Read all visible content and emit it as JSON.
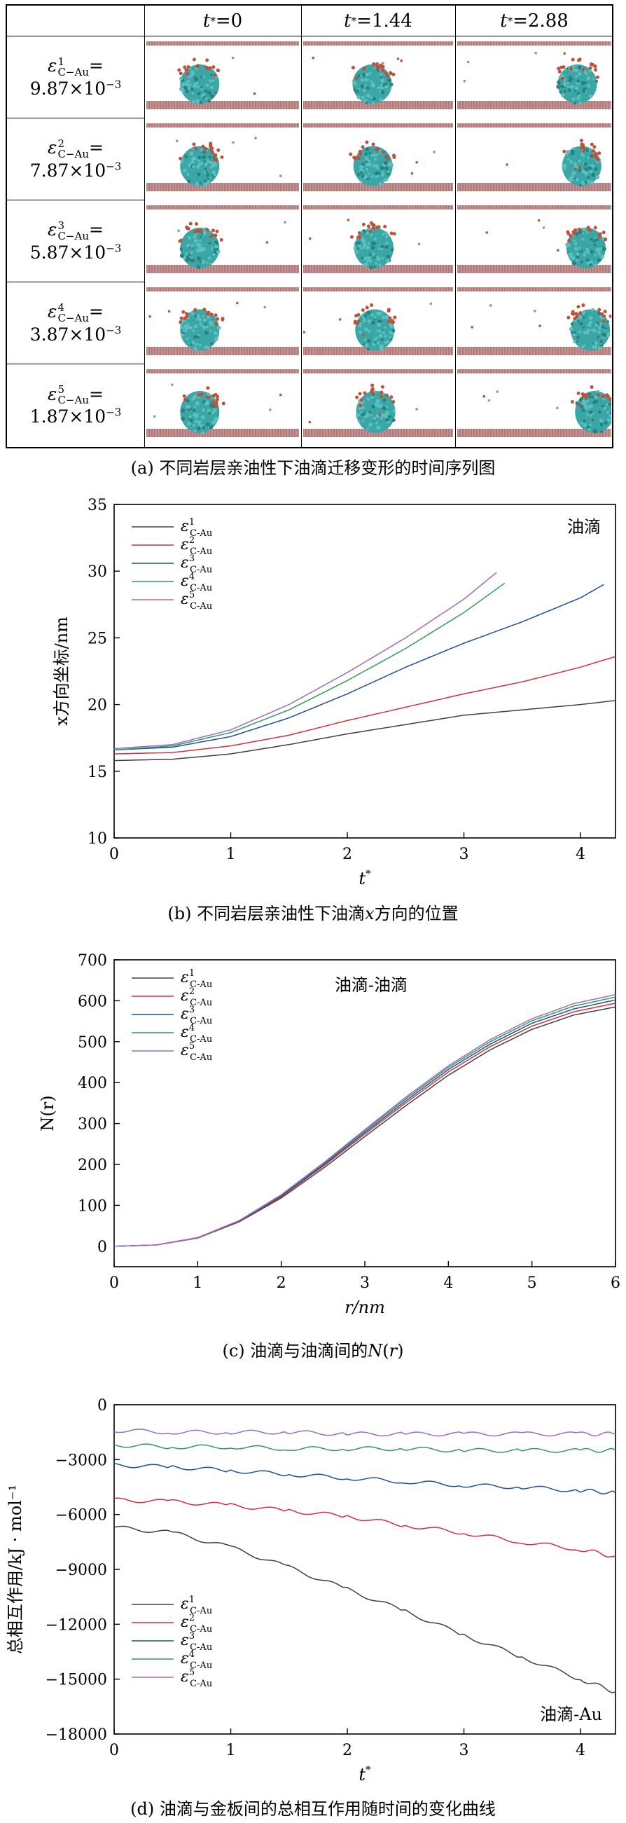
{
  "panel_a": {
    "col_headers": [
      "t*=0",
      "t*=1.44",
      "t*=2.88"
    ],
    "col_header_parts": [
      {
        "t": "t",
        "sup": "*",
        "rest": "=0"
      },
      {
        "t": "t",
        "sup": "*",
        "rest": "=1.44"
      },
      {
        "t": "t",
        "sup": "*",
        "rest": "=2.88"
      }
    ],
    "rows": [
      {
        "eps": "ε",
        "sup": "1",
        "sub": "C−Au",
        "eq": "=",
        "val": "9.87×10",
        "exp": "−3"
      },
      {
        "eps": "ε",
        "sup": "2",
        "sub": "C−Au",
        "eq": "=",
        "val": "7.87×10",
        "exp": "−3"
      },
      {
        "eps": "ε",
        "sup": "3",
        "sub": "C−Au",
        "eq": "=",
        "val": "5.87×10",
        "exp": "−3"
      },
      {
        "eps": "ε",
        "sup": "4",
        "sub": "C−Au",
        "eq": "=",
        "val": "3.87×10",
        "exp": "−3"
      },
      {
        "eps": "ε",
        "sup": "5",
        "sub": "C−Au",
        "eq": "=",
        "val": "1.87×10",
        "exp": "−3"
      }
    ],
    "caption": "(a) 不同岩层亲油性下油滴迁移变形的时间序列图"
  },
  "colors": {
    "s1": "#404040",
    "s2": "#d62f3a",
    "s3": "#1f4e9a",
    "s4": "#2f9a5a",
    "s5": "#a06ac0",
    "droplet": "#3aa6a6",
    "particle": "#c0503a",
    "plate": "#b07070"
  },
  "legend_labels": [
    {
      "eps": "ε",
      "sup": "1",
      "sub": "C-Au"
    },
    {
      "eps": "ε",
      "sup": "2",
      "sub": "C-Au"
    },
    {
      "eps": "ε",
      "sup": "3",
      "sub": "C-Au"
    },
    {
      "eps": "ε",
      "sup": "4",
      "sub": "C-Au"
    },
    {
      "eps": "ε",
      "sup": "5",
      "sub": "C-Au"
    }
  ],
  "chart_data": [
    {
      "id": "b",
      "type": "line",
      "title": "",
      "annotation": "油滴",
      "xlabel": "t",
      "xlabel_sup": "*",
      "ylabel": "x方向坐标/nm",
      "xlim": [
        0,
        4.3
      ],
      "ylim": [
        10,
        35
      ],
      "xticks": [
        0,
        1,
        2,
        3,
        4
      ],
      "yticks": [
        10,
        15,
        20,
        25,
        30,
        35
      ],
      "caption_parts": [
        "(b) 不同岩层亲油性下油滴",
        "x",
        "方向的位置"
      ],
      "series": [
        {
          "name": "ε1",
          "x": [
            0,
            0.5,
            1,
            1.5,
            2,
            2.5,
            3,
            3.5,
            4,
            4.3
          ],
          "y": [
            15.8,
            15.9,
            16.3,
            17,
            17.8,
            18.5,
            19.2,
            19.6,
            20,
            20.3
          ]
        },
        {
          "name": "ε2",
          "x": [
            0,
            0.5,
            1,
            1.5,
            2,
            2.5,
            3,
            3.5,
            4,
            4.3
          ],
          "y": [
            16.3,
            16.4,
            16.9,
            17.7,
            18.8,
            19.8,
            20.8,
            21.7,
            22.8,
            23.6
          ]
        },
        {
          "name": "ε3",
          "x": [
            0,
            0.5,
            1,
            1.5,
            2,
            2.5,
            3,
            3.5,
            4,
            4.2
          ],
          "y": [
            16.6,
            16.8,
            17.6,
            19,
            20.8,
            22.8,
            24.6,
            26.2,
            28,
            29
          ]
        },
        {
          "name": "ε4",
          "x": [
            0,
            0.5,
            1,
            1.5,
            2,
            2.5,
            3,
            3.35
          ],
          "y": [
            16.6,
            16.9,
            17.9,
            19.6,
            21.8,
            24.2,
            26.9,
            29.1
          ]
        },
        {
          "name": "ε5",
          "x": [
            0,
            0.5,
            1,
            1.5,
            2,
            2.5,
            3,
            3.28
          ],
          "y": [
            16.7,
            17,
            18.1,
            20,
            22.4,
            25,
            27.9,
            29.9
          ]
        }
      ]
    },
    {
      "id": "c",
      "type": "line",
      "title": "",
      "annotation": "油滴-油滴",
      "xlabel": "r/nm",
      "ylabel": "N(r)",
      "xlim": [
        0,
        6
      ],
      "ylim": [
        -50,
        700
      ],
      "xticks": [
        0,
        1,
        2,
        3,
        4,
        5,
        6
      ],
      "yticks": [
        0,
        100,
        200,
        300,
        400,
        500,
        600,
        700
      ],
      "caption_parts": [
        "(c) 油滴与油滴间的",
        "N",
        "(",
        "r",
        ")"
      ],
      "series": [
        {
          "name": "ε1",
          "x": [
            0,
            0.5,
            1,
            1.5,
            2,
            2.5,
            3,
            3.5,
            4,
            4.5,
            5,
            5.5,
            6
          ],
          "y": [
            0,
            3,
            20,
            60,
            118,
            190,
            268,
            345,
            418,
            480,
            530,
            565,
            585
          ]
        },
        {
          "name": "ε2",
          "x": [
            0,
            0.5,
            1,
            1.5,
            2,
            2.5,
            3,
            3.5,
            4,
            4.5,
            5,
            5.5,
            6
          ],
          "y": [
            0,
            3,
            20,
            61,
            121,
            195,
            274,
            352,
            426,
            488,
            538,
            573,
            594
          ]
        },
        {
          "name": "ε3",
          "x": [
            0,
            0.5,
            1,
            1.5,
            2,
            2.5,
            3,
            3.5,
            4,
            4.5,
            5,
            5.5,
            6
          ],
          "y": [
            0,
            3,
            21,
            62,
            123,
            198,
            278,
            357,
            432,
            494,
            545,
            580,
            602
          ]
        },
        {
          "name": "ε4",
          "x": [
            0,
            0.5,
            1,
            1.5,
            2,
            2.5,
            3,
            3.5,
            4,
            4.5,
            5,
            5.5,
            6
          ],
          "y": [
            0,
            3,
            21,
            63,
            125,
            201,
            282,
            362,
            437,
            500,
            551,
            587,
            609
          ]
        },
        {
          "name": "ε5",
          "x": [
            0,
            0.5,
            1,
            1.5,
            2,
            2.5,
            3,
            3.5,
            4,
            4.5,
            5,
            5.5,
            6
          ],
          "y": [
            0,
            3,
            21,
            63,
            126,
            203,
            285,
            366,
            441,
            505,
            556,
            593,
            615
          ]
        }
      ]
    },
    {
      "id": "d",
      "type": "line",
      "title": "",
      "annotation": "油滴-Au",
      "xlabel": "t",
      "xlabel_sup": "*",
      "ylabel": "总相互作用/kJ · mol⁻¹",
      "xlim": [
        0,
        4.3
      ],
      "ylim": [
        -18000,
        0
      ],
      "xticks": [
        0,
        1,
        2,
        3,
        4
      ],
      "yticks": [
        0,
        -3000,
        -6000,
        -9000,
        -12000,
        -15000,
        -18000
      ],
      "ytick_labels": [
        "0",
        "−3000",
        "−6000",
        "−9000",
        "−12000",
        "−15000",
        "−18000"
      ],
      "caption_parts": [
        "(d) 油滴与金板间的总相互作用随时间的变化曲线"
      ],
      "series": [
        {
          "name": "ε1",
          "x": [
            0,
            0.5,
            1,
            1.5,
            2,
            2.5,
            3,
            3.5,
            4,
            4.3
          ],
          "y": [
            -6700,
            -7000,
            -7800,
            -8900,
            -10100,
            -11300,
            -12600,
            -13800,
            -15000,
            -15700
          ]
        },
        {
          "name": "ε2",
          "x": [
            0,
            0.5,
            1,
            1.5,
            2,
            2.5,
            3,
            3.5,
            4,
            4.3
          ],
          "y": [
            -5200,
            -5300,
            -5500,
            -5800,
            -6100,
            -6600,
            -7000,
            -7500,
            -7900,
            -8300
          ]
        },
        {
          "name": "ε3",
          "x": [
            0,
            0.5,
            1,
            1.5,
            2,
            2.5,
            3,
            3.5,
            4,
            4.3
          ],
          "y": [
            -3300,
            -3400,
            -3600,
            -3800,
            -4000,
            -4200,
            -4400,
            -4500,
            -4700,
            -4800
          ]
        },
        {
          "name": "ε4",
          "x": [
            0,
            0.5,
            1,
            1.5,
            2,
            2.5,
            3,
            3.5,
            4,
            4.3
          ],
          "y": [
            -2200,
            -2300,
            -2300,
            -2400,
            -2400,
            -2400,
            -2500,
            -2500,
            -2500,
            -2500
          ]
        },
        {
          "name": "ε5",
          "x": [
            0,
            0.5,
            1,
            1.5,
            2,
            2.5,
            3,
            3.5,
            4,
            4.3
          ],
          "y": [
            -1400,
            -1500,
            -1500,
            -1500,
            -1600,
            -1600,
            -1600,
            -1600,
            -1600,
            -1600
          ]
        }
      ]
    }
  ]
}
